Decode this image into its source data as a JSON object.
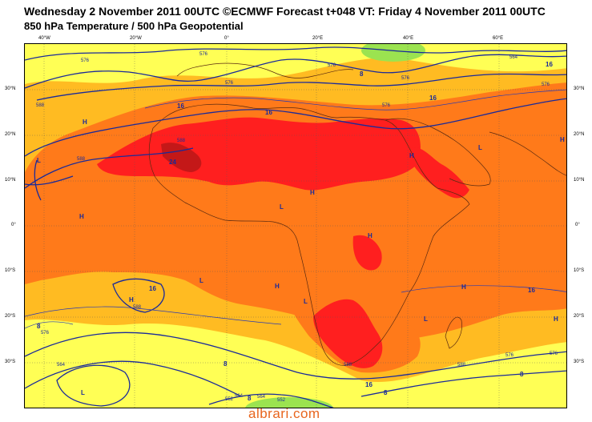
{
  "header": {
    "title_line1": "Wednesday 2 November 2011 00UTC ©ECMWF Forecast t+048 VT: Friday 4 November 2011 00UTC",
    "title_line2": "850 hPa Temperature / 500 hPa Geopotential"
  },
  "axes": {
    "lon_labels": [
      "40°W",
      "20°W",
      "0°",
      "20°E",
      "40°E",
      "60°E"
    ],
    "lat_labels": [
      "30°N",
      "20°N",
      "10°N",
      "0°",
      "10°S",
      "20°S",
      "30°S"
    ]
  },
  "contours": {
    "geopotential_labels": [
      "576",
      "576",
      "588",
      "588",
      "588",
      "552",
      "564",
      "576",
      "564",
      "576",
      "576",
      "588",
      "588",
      "576",
      "552",
      "564",
      "576",
      "564",
      "576",
      "576",
      "588",
      "576"
    ],
    "temperature_labels": [
      "16",
      "16",
      "16",
      "24",
      "16",
      "16",
      "16",
      "8",
      "8",
      "8",
      "8",
      "8",
      "16",
      "8"
    ]
  },
  "pressure_centers": {
    "labels": [
      "H",
      "L",
      "H",
      "H",
      "L",
      "H",
      "L",
      "L",
      "H",
      "H",
      "L",
      "H",
      "L",
      "H",
      "H",
      "L",
      "H"
    ]
  },
  "colors": {
    "yellow": "#ffff55",
    "light_orange": "#ffbb22",
    "orange": "#ff7a1a",
    "red": "#ff1f1f",
    "dark_red": "#c41818",
    "green": "#9be350",
    "contour": "#1a2a9a",
    "coast": "#5a2a10"
  },
  "watermark": "albrari.com"
}
